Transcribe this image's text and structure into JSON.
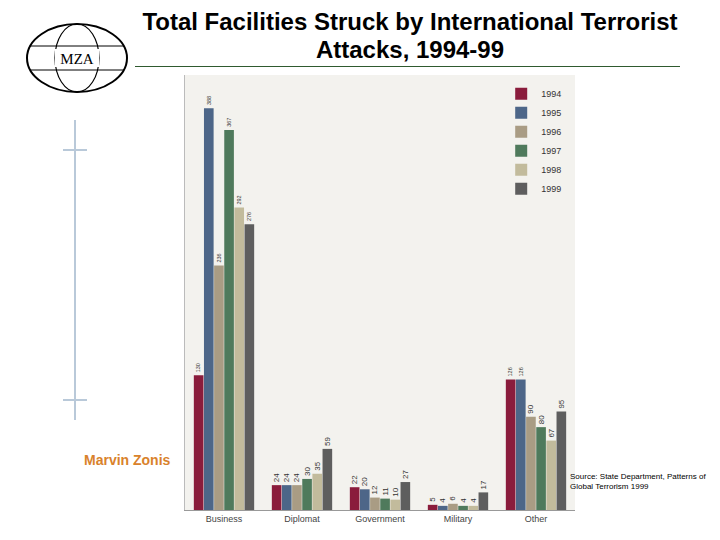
{
  "chart_data": {
    "type": "bar",
    "title": "Total Facilities Struck by International Terrorist Attacks, 1994-99",
    "annotations": [
      "MZA",
      "Marvin Zonis",
      "Source: State Department, Patterns of Global Terrorism 1999"
    ],
    "categories": [
      "Business",
      "Diplomat",
      "Government",
      "Military",
      "Other"
    ],
    "series": [
      {
        "name": "1994",
        "color": "#8a1c3c",
        "values": [
          130,
          24,
          22,
          5,
          126
        ]
      },
      {
        "name": "1995",
        "color": "#4d6688",
        "values": [
          388,
          24,
          20,
          4,
          126
        ]
      },
      {
        "name": "1996",
        "color": "#a99c84",
        "values": [
          236,
          24,
          12,
          6,
          90
        ]
      },
      {
        "name": "1997",
        "color": "#4f7a5c",
        "values": [
          367,
          30,
          11,
          4,
          80
        ]
      },
      {
        "name": "1998",
        "color": "#c2bb9c",
        "values": [
          292,
          35,
          10,
          4,
          67
        ]
      },
      {
        "name": "1999",
        "color": "#5e5e5e",
        "values": [
          276,
          59,
          27,
          17,
          95
        ]
      }
    ],
    "ylim": [
      0,
      420
    ],
    "grid": false,
    "legend": "upper right",
    "data_labels": true,
    "tick_labels": "x"
  }
}
